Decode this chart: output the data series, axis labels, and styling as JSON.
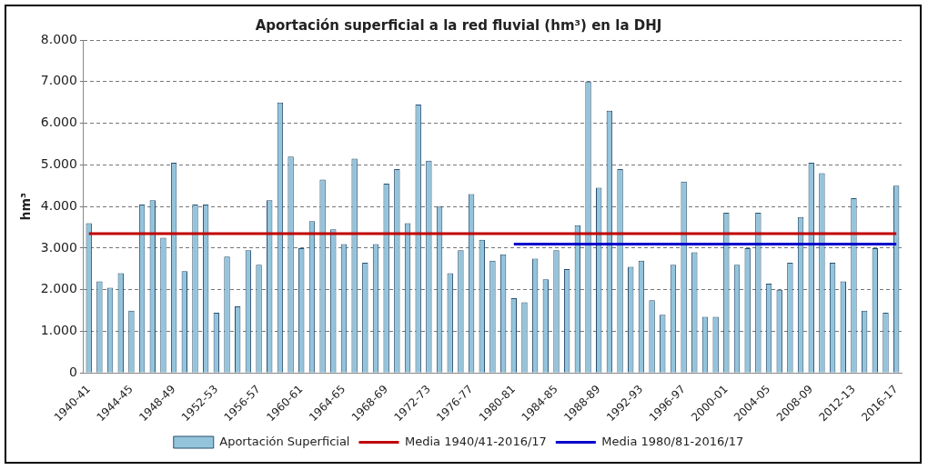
{
  "chart_data": {
    "type": "bar",
    "title": "Aportación superficial a la red fluvial (hm³) en la DHJ",
    "ylabel": "hm³",
    "categories": [
      "1940-41",
      null,
      null,
      null,
      "1944-45",
      null,
      null,
      null,
      "1948-49",
      null,
      null,
      null,
      "1952-53",
      null,
      null,
      null,
      "1956-57",
      null,
      null,
      null,
      "1960-61",
      null,
      null,
      null,
      "1964-65",
      null,
      null,
      null,
      "1968-69",
      null,
      null,
      null,
      "1972-73",
      null,
      null,
      null,
      "1976-77",
      null,
      null,
      null,
      "1980-81",
      null,
      null,
      null,
      "1984-85",
      null,
      null,
      null,
      "1988-89",
      null,
      null,
      null,
      "1992-93",
      null,
      null,
      null,
      "1996-97",
      null,
      null,
      null,
      "2000-01",
      null,
      null,
      null,
      "2004-05",
      null,
      null,
      null,
      "2008-09",
      null,
      null,
      null,
      "2012-13",
      null,
      null,
      null,
      "2016-17"
    ],
    "series": [
      {
        "name": "Aportación Superficial",
        "color": "#93c4dc",
        "values": [
          3600,
          2200,
          2050,
          2400,
          1500,
          4050,
          4150,
          3250,
          5050,
          2450,
          4050,
          4050,
          1450,
          2800,
          1600,
          2950,
          2600,
          4150,
          6500,
          5200,
          3000,
          3650,
          4650,
          3450,
          3100,
          5150,
          2650,
          3100,
          4550,
          4900,
          3600,
          6450,
          5100,
          4000,
          2400,
          2950,
          4300,
          3200,
          2700,
          2850,
          1800,
          1700,
          2750,
          2250,
          2950,
          2500,
          3550,
          7000,
          4450,
          6300,
          4900,
          2550,
          2700,
          1750,
          1400,
          2600,
          4600,
          2900,
          1350,
          1350,
          3850,
          2600,
          3000,
          3850,
          2150,
          2000,
          2650,
          3750,
          5050,
          4800,
          2650,
          2200,
          4200,
          1500,
          3000,
          1450,
          4500
        ]
      },
      {
        "name": "Media 1940/41-2016/17",
        "type": "line",
        "color": "#c00000",
        "values": [
          3350,
          3350,
          3350,
          3350,
          3350,
          3350,
          3350,
          3350,
          3350,
          3350,
          3350,
          3350,
          3350,
          3350,
          3350,
          3350,
          3350,
          3350,
          3350,
          3350,
          3350,
          3350,
          3350,
          3350,
          3350,
          3350,
          3350,
          3350,
          3350,
          3350,
          3350,
          3350,
          3350,
          3350,
          3350,
          3350,
          3350,
          3350,
          3350,
          3350,
          3350,
          3350,
          3350,
          3350,
          3350,
          3350,
          3350,
          3350,
          3350,
          3350,
          3350,
          3350,
          3350,
          3350,
          3350,
          3350,
          3350,
          3350,
          3350,
          3350,
          3350,
          3350,
          3350,
          3350,
          3350,
          3350,
          3350,
          3350,
          3350,
          3350,
          3350,
          3350,
          3350,
          3350,
          3350,
          3350,
          3350
        ]
      },
      {
        "name": "Media 1980/81-2016/17",
        "type": "line",
        "color": "#0000cc",
        "values": [
          null,
          null,
          null,
          null,
          null,
          null,
          null,
          null,
          null,
          null,
          null,
          null,
          null,
          null,
          null,
          null,
          null,
          null,
          null,
          null,
          null,
          null,
          null,
          null,
          null,
          null,
          null,
          null,
          null,
          null,
          null,
          null,
          null,
          null,
          null,
          null,
          null,
          null,
          null,
          null,
          3100,
          3100,
          3100,
          3100,
          3100,
          3100,
          3100,
          3100,
          3100,
          3100,
          3100,
          3100,
          3100,
          3100,
          3100,
          3100,
          3100,
          3100,
          3100,
          3100,
          3100,
          3100,
          3100,
          3100,
          3100,
          3100,
          3100,
          3100,
          3100,
          3100,
          3100,
          3100,
          3100,
          3100,
          3100,
          3100,
          3100
        ]
      }
    ],
    "ylim": [
      0,
      8000
    ],
    "yticks": [
      {
        "value": 0,
        "label": "0"
      },
      {
        "value": 1000,
        "label": "1.000"
      },
      {
        "value": 2000,
        "label": "2.000"
      },
      {
        "value": 3000,
        "label": "3.000"
      },
      {
        "value": 4000,
        "label": "4.000"
      },
      {
        "value": 5000,
        "label": "5.000"
      },
      {
        "value": 6000,
        "label": "6.000"
      },
      {
        "value": 7000,
        "label": "7.000"
      },
      {
        "value": 8000,
        "label": "8.000"
      }
    ],
    "grid": "y",
    "legend": "bottom",
    "marker": "none",
    "line_style": "solid"
  }
}
